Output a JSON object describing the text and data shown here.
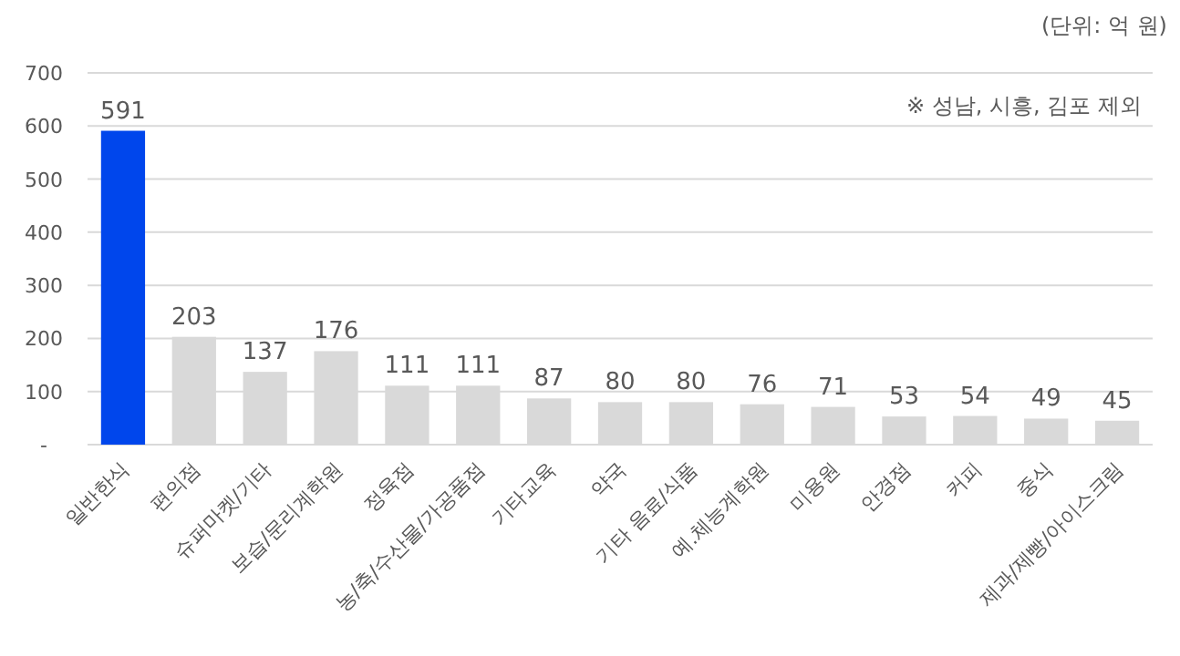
{
  "chart_data": {
    "type": "bar",
    "categories": [
      "일반한식",
      "편의점",
      "슈퍼마켓/기타",
      "보습/문리계학원",
      "정육점",
      "농/축/수산물/가공품점",
      "기타교육",
      "약국",
      "기타 음료/식품",
      "예.체능계학원",
      "미용원",
      "안경점",
      "커피",
      "중식",
      "제과/제빵/아이스크림"
    ],
    "values": [
      591,
      203,
      137,
      176,
      111,
      111,
      87,
      80,
      80,
      76,
      71,
      53,
      54,
      49,
      45
    ],
    "colors": [
      "#0046ec",
      "#d9d9d9",
      "#d9d9d9",
      "#d9d9d9",
      "#d9d9d9",
      "#d9d9d9",
      "#d9d9d9",
      "#d9d9d9",
      "#d9d9d9",
      "#d9d9d9",
      "#d9d9d9",
      "#d9d9d9",
      "#d9d9d9",
      "#d9d9d9",
      "#d9d9d9"
    ],
    "ylim": [
      0,
      700
    ],
    "yticks": [
      {
        "value": 0,
        "label": "-"
      },
      100,
      200,
      300,
      400,
      500,
      600,
      700
    ],
    "grid": "y",
    "data_labels": true,
    "annotations": [
      "(단위: 억 원)",
      "※ 성남, 시흥, 김포 제외"
    ]
  }
}
